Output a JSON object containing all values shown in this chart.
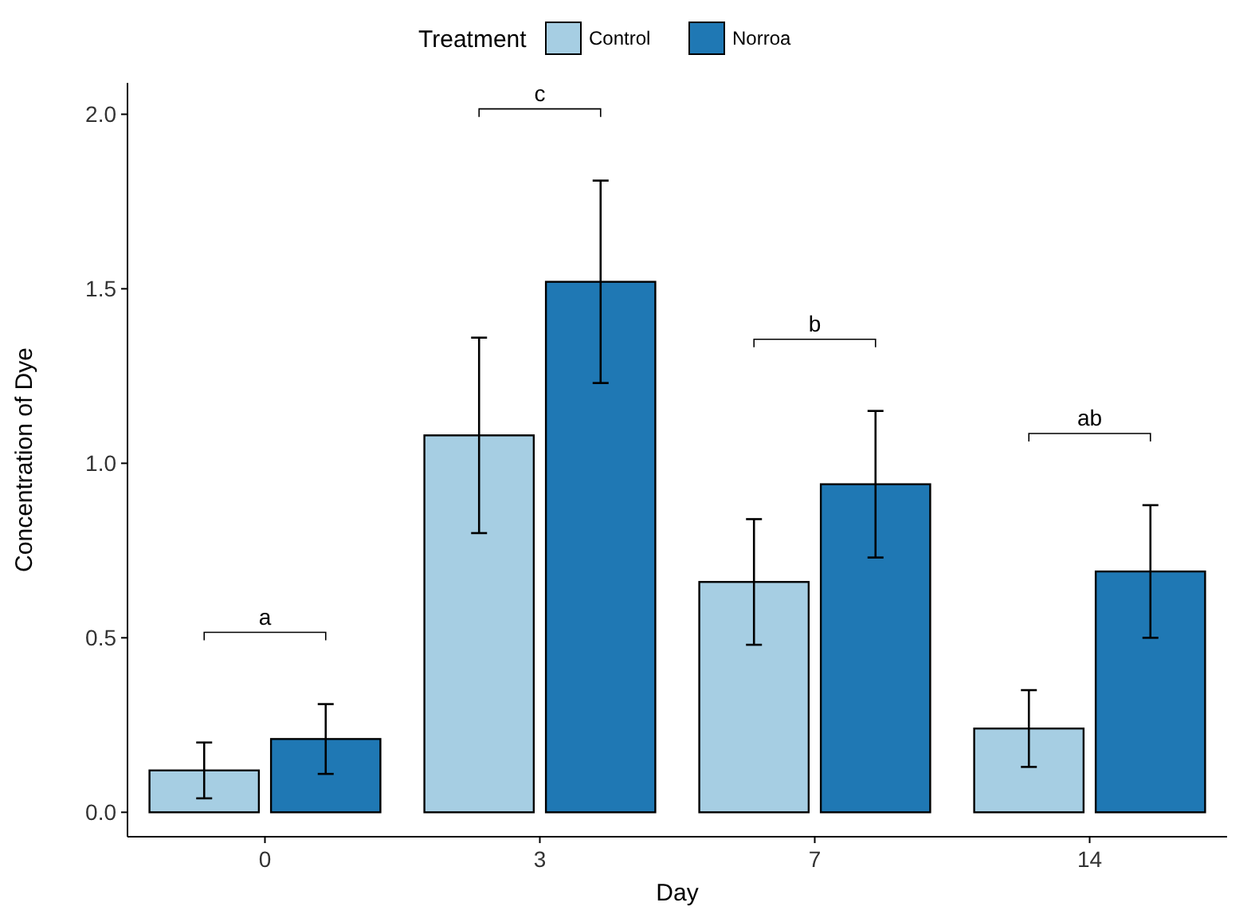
{
  "chart_data": {
    "type": "bar",
    "xlabel": "Day",
    "ylabel": "Concentration of Dye",
    "legend_title": "Treatment",
    "legend": "top",
    "categories": [
      "0",
      "3",
      "7",
      "14"
    ],
    "series": [
      {
        "name": "Control",
        "color": "#a6cee3",
        "values": [
          0.12,
          1.08,
          0.66,
          0.24
        ],
        "errors": [
          0.08,
          0.28,
          0.18,
          0.11
        ]
      },
      {
        "name": "Norroa",
        "color": "#1f78b4",
        "values": [
          0.21,
          1.52,
          0.94,
          0.69
        ],
        "errors": [
          0.1,
          0.29,
          0.21,
          0.19
        ]
      }
    ],
    "ylim": [
      -0.07,
      2.09
    ],
    "yticks": [
      {
        "value": 0,
        "label": "0.0"
      },
      {
        "value": 0.5,
        "label": "0.5"
      },
      {
        "value": 1,
        "label": "1.0"
      },
      {
        "value": 1.5,
        "label": "1.5"
      },
      {
        "value": 2,
        "label": "2.0"
      }
    ],
    "grid": false,
    "annotations": [
      "a",
      "c",
      "b",
      "ab"
    ]
  }
}
